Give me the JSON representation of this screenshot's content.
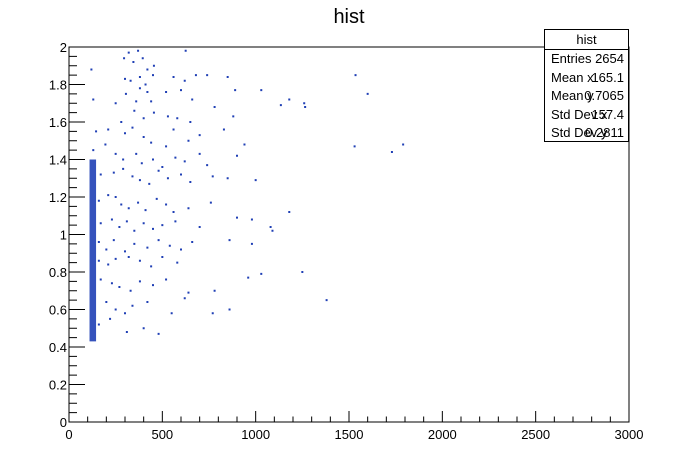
{
  "chart_data": {
    "type": "heatmap",
    "title": "hist",
    "xlabel": "",
    "ylabel": "",
    "xlim": [
      0,
      3000
    ],
    "ylim": [
      0,
      2
    ],
    "x_ticks": [
      "0",
      "500",
      "1000",
      "1500",
      "2000",
      "2500",
      "3000"
    ],
    "y_ticks": [
      "0",
      "0.2",
      "0.4",
      "0.6",
      "0.8",
      "1",
      "1.2",
      "1.4",
      "1.6",
      "1.8",
      "2"
    ],
    "marker_color": "#1f3fb5",
    "dense_band": {
      "x_range": [
        110,
        145
      ],
      "y_range": [
        0.43,
        1.4
      ]
    },
    "points": [
      [
        120,
        1.88
      ],
      [
        295,
        1.94
      ],
      [
        320,
        1.97
      ],
      [
        345,
        1.92
      ],
      [
        370,
        1.98
      ],
      [
        395,
        1.94
      ],
      [
        420,
        1.88
      ],
      [
        455,
        1.9
      ],
      [
        625,
        1.98
      ],
      [
        300,
        1.83
      ],
      [
        330,
        1.82
      ],
      [
        380,
        1.84
      ],
      [
        410,
        1.8
      ],
      [
        450,
        1.85
      ],
      [
        560,
        1.84
      ],
      [
        620,
        1.82
      ],
      [
        680,
        1.85
      ],
      [
        740,
        1.85
      ],
      [
        850,
        1.84
      ],
      [
        1535,
        1.85
      ],
      [
        130,
        1.72
      ],
      [
        250,
        1.7
      ],
      [
        305,
        1.75
      ],
      [
        360,
        1.71
      ],
      [
        380,
        1.78
      ],
      [
        420,
        1.76
      ],
      [
        440,
        1.71
      ],
      [
        520,
        1.76
      ],
      [
        600,
        1.77
      ],
      [
        660,
        1.72
      ],
      [
        890,
        1.77
      ],
      [
        1030,
        1.77
      ],
      [
        1180,
        1.72
      ],
      [
        1260,
        1.7
      ],
      [
        1600,
        1.75
      ],
      [
        280,
        1.6
      ],
      [
        350,
        1.66
      ],
      [
        400,
        1.62
      ],
      [
        455,
        1.65
      ],
      [
        530,
        1.63
      ],
      [
        580,
        1.62
      ],
      [
        650,
        1.6
      ],
      [
        780,
        1.68
      ],
      [
        880,
        1.63
      ],
      [
        1135,
        1.69
      ],
      [
        1265,
        1.68
      ],
      [
        145,
        1.55
      ],
      [
        210,
        1.56
      ],
      [
        300,
        1.54
      ],
      [
        340,
        1.57
      ],
      [
        400,
        1.52
      ],
      [
        440,
        1.49
      ],
      [
        520,
        1.47
      ],
      [
        560,
        1.56
      ],
      [
        640,
        1.5
      ],
      [
        700,
        1.53
      ],
      [
        830,
        1.56
      ],
      [
        940,
        1.48
      ],
      [
        1530,
        1.47
      ],
      [
        1790,
        1.48
      ],
      [
        1730,
        1.44
      ],
      [
        130,
        1.45
      ],
      [
        195,
        1.48
      ],
      [
        250,
        1.43
      ],
      [
        290,
        1.4
      ],
      [
        360,
        1.43
      ],
      [
        390,
        1.38
      ],
      [
        450,
        1.4
      ],
      [
        500,
        1.36
      ],
      [
        570,
        1.41
      ],
      [
        620,
        1.39
      ],
      [
        700,
        1.43
      ],
      [
        740,
        1.37
      ],
      [
        900,
        1.42
      ],
      [
        170,
        1.32
      ],
      [
        240,
        1.33
      ],
      [
        290,
        1.35
      ],
      [
        340,
        1.31
      ],
      [
        380,
        1.29
      ],
      [
        430,
        1.27
      ],
      [
        480,
        1.34
      ],
      [
        530,
        1.3
      ],
      [
        600,
        1.32
      ],
      [
        650,
        1.28
      ],
      [
        770,
        1.31
      ],
      [
        850,
        1.3
      ],
      [
        1000,
        1.29
      ],
      [
        160,
        1.18
      ],
      [
        210,
        1.21
      ],
      [
        250,
        1.2
      ],
      [
        280,
        1.16
      ],
      [
        320,
        1.14
      ],
      [
        370,
        1.17
      ],
      [
        410,
        1.13
      ],
      [
        470,
        1.19
      ],
      [
        520,
        1.16
      ],
      [
        560,
        1.12
      ],
      [
        640,
        1.14
      ],
      [
        760,
        1.17
      ],
      [
        1180,
        1.12
      ],
      [
        170,
        1.06
      ],
      [
        230,
        1.08
      ],
      [
        270,
        1.04
      ],
      [
        310,
        1.07
      ],
      [
        350,
        1.02
      ],
      [
        400,
        1.06
      ],
      [
        450,
        1.03
      ],
      [
        500,
        1.05
      ],
      [
        570,
        1.07
      ],
      [
        700,
        1.04
      ],
      [
        900,
        1.09
      ],
      [
        980,
        1.08
      ],
      [
        1090,
        1.02
      ],
      [
        1080,
        1.04
      ],
      [
        160,
        0.96
      ],
      [
        200,
        0.92
      ],
      [
        240,
        0.97
      ],
      [
        300,
        0.91
      ],
      [
        350,
        0.95
      ],
      [
        420,
        0.93
      ],
      [
        480,
        0.97
      ],
      [
        540,
        0.94
      ],
      [
        600,
        0.92
      ],
      [
        660,
        0.96
      ],
      [
        860,
        0.97
      ],
      [
        980,
        0.95
      ],
      [
        160,
        0.86
      ],
      [
        210,
        0.84
      ],
      [
        250,
        0.87
      ],
      [
        320,
        0.88
      ],
      [
        380,
        0.86
      ],
      [
        440,
        0.83
      ],
      [
        500,
        0.88
      ],
      [
        580,
        0.85
      ],
      [
        1250,
        0.8
      ],
      [
        170,
        0.76
      ],
      [
        230,
        0.74
      ],
      [
        270,
        0.72
      ],
      [
        330,
        0.7
      ],
      [
        380,
        0.75
      ],
      [
        450,
        0.73
      ],
      [
        520,
        0.76
      ],
      [
        640,
        0.69
      ],
      [
        780,
        0.7
      ],
      [
        960,
        0.77
      ],
      [
        1030,
        0.79
      ],
      [
        1380,
        0.65
      ],
      [
        200,
        0.64
      ],
      [
        250,
        0.6
      ],
      [
        300,
        0.58
      ],
      [
        340,
        0.62
      ],
      [
        420,
        0.64
      ],
      [
        550,
        0.58
      ],
      [
        620,
        0.66
      ],
      [
        770,
        0.58
      ],
      [
        860,
        0.6
      ],
      [
        160,
        0.52
      ],
      [
        220,
        0.55
      ],
      [
        310,
        0.48
      ],
      [
        400,
        0.5
      ],
      [
        480,
        0.47
      ]
    ]
  },
  "stats_box": {
    "title": "hist",
    "rows": [
      {
        "label": "Entries",
        "value": "2654"
      },
      {
        "label": "Mean x",
        "value": "165.1"
      },
      {
        "label": "Mean y",
        "value": "0.7065"
      },
      {
        "label": "Std Dev x",
        "value": "157.4"
      },
      {
        "label": "Std Dev y",
        "value": "0.2811"
      }
    ]
  }
}
